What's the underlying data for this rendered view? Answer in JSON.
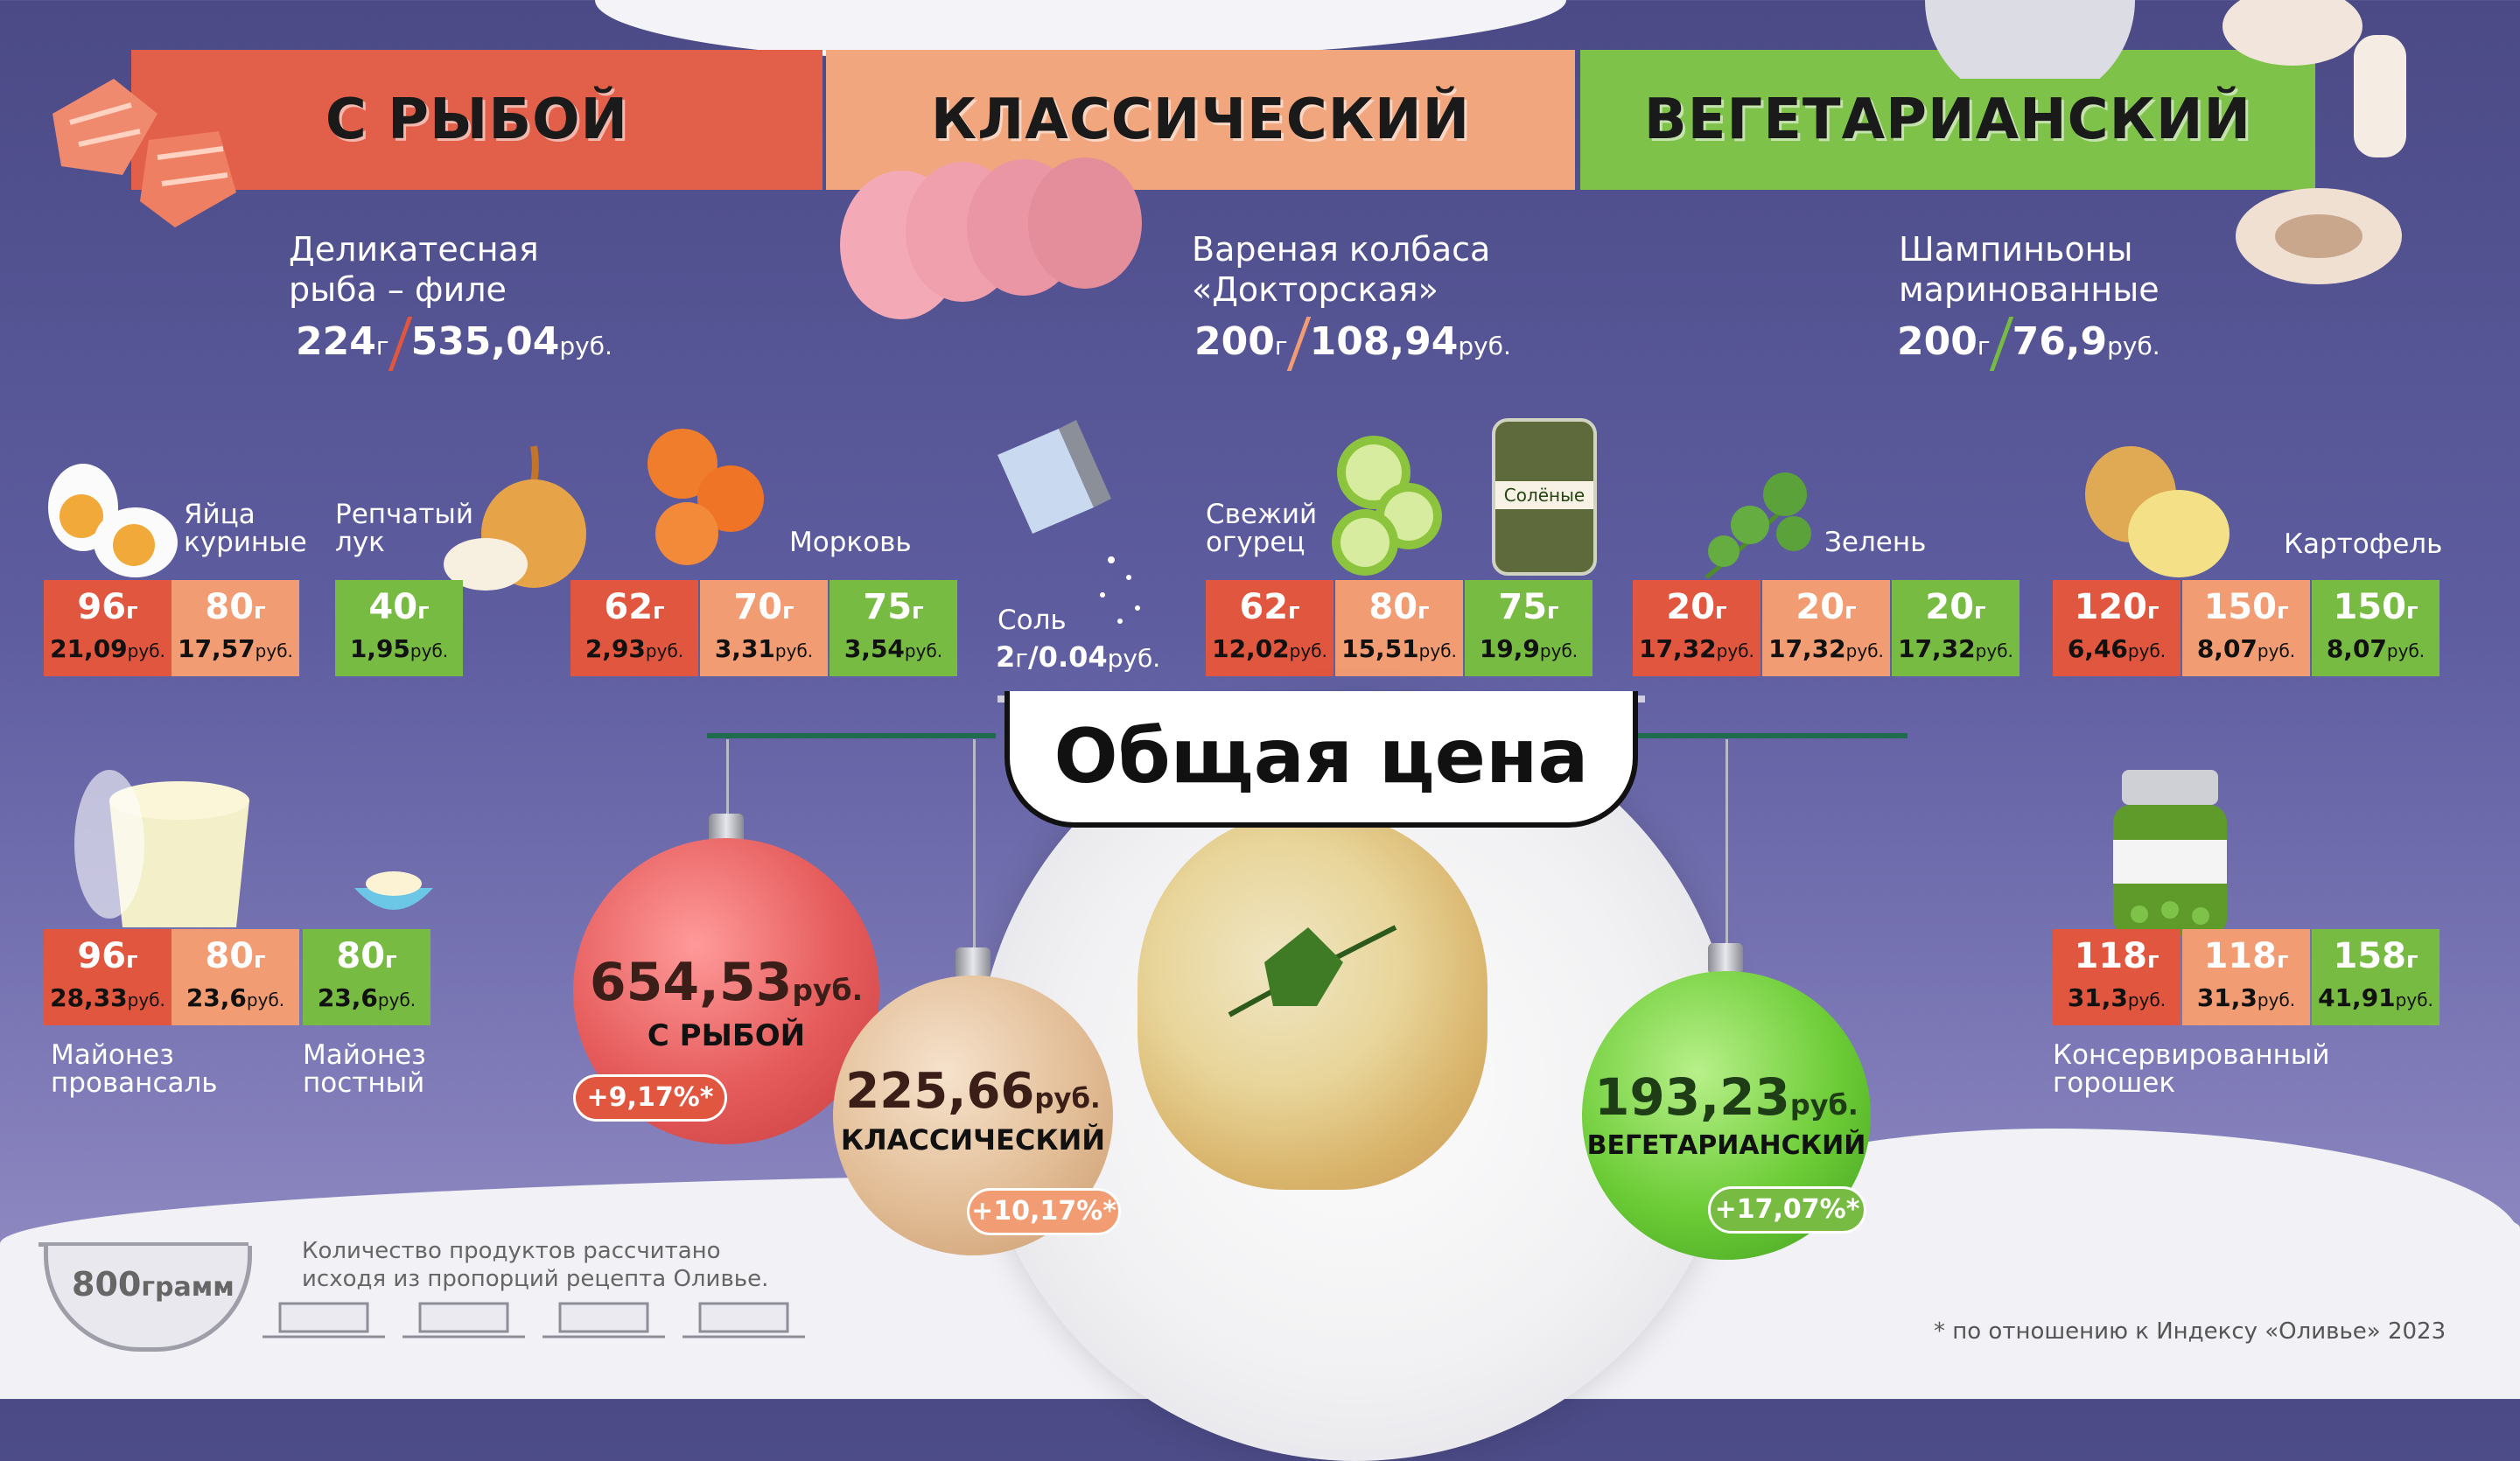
{
  "headers": {
    "fish": "С РЫБОЙ",
    "classic": "КЛАССИЧЕСКИЙ",
    "veg": "ВЕГЕТАРИАНСКИЙ"
  },
  "colors": {
    "fish": "#e0563f",
    "classic": "#f19c73",
    "veg": "#78bb43",
    "background": "#55549a"
  },
  "main_ingredients": [
    {
      "name_line1": "Деликатесная",
      "name_line2": "рыба – филе",
      "grams": "224",
      "price": "535,04",
      "slash_color": "#e0563f"
    },
    {
      "name_line1": "Вареная колбаса",
      "name_line2": "«Докторская»",
      "grams": "200",
      "price": "108,94",
      "slash_color": "#f19c73"
    },
    {
      "name_line1": "Шампиньоны",
      "name_line2": "маринованные",
      "grams": "200",
      "price": "76,9",
      "slash_color": "#78bb43"
    }
  ],
  "units": {
    "g": "г",
    "rub": "руб."
  },
  "labels": {
    "eggs": [
      "Яйца",
      "куриные"
    ],
    "onion": [
      "Репчатый",
      "лук"
    ],
    "carrot": "Морковь",
    "salt": "Соль",
    "cucumber": [
      "Свежий",
      "огурец"
    ],
    "pickled_label": "Солёные",
    "greens": "Зелень",
    "potato": "Картофель",
    "mayo_prov": [
      "Майонез",
      "провансаль"
    ],
    "mayo_lean": [
      "Майонез",
      "постный"
    ],
    "peas": [
      "Консервированный",
      "горошек"
    ]
  },
  "salt": {
    "grams": "2",
    "price": "0.04"
  },
  "cells": {
    "eggs": [
      {
        "g": "96",
        "p": "21,09"
      },
      {
        "g": "80",
        "p": "17,57"
      }
    ],
    "onion": [
      {
        "g": "40",
        "p": "1,95"
      }
    ],
    "carrot": [
      {
        "g": "62",
        "p": "2,93"
      },
      {
        "g": "70",
        "p": "3,31"
      },
      {
        "g": "75",
        "p": "3,54"
      }
    ],
    "cucumber": [
      {
        "g": "62",
        "p": "12,02"
      },
      {
        "g": "80",
        "p": "15,51"
      },
      {
        "g": "75",
        "p": "19,9"
      }
    ],
    "greens": [
      {
        "g": "20",
        "p": "17,32"
      },
      {
        "g": "20",
        "p": "17,32"
      },
      {
        "g": "20",
        "p": "17,32"
      }
    ],
    "potato": [
      {
        "g": "120",
        "p": "6,46"
      },
      {
        "g": "150",
        "p": "8,07"
      },
      {
        "g": "150",
        "p": "8,07"
      }
    ],
    "mayo": [
      {
        "g": "96",
        "p": "28,33"
      },
      {
        "g": "80",
        "p": "23,6"
      },
      {
        "g": "80",
        "p": "23,6"
      }
    ],
    "peas": [
      {
        "g": "118",
        "p": "31,3"
      },
      {
        "g": "118",
        "p": "31,3"
      },
      {
        "g": "158",
        "p": "41,91"
      }
    ]
  },
  "total": {
    "title": "Общая цена",
    "fish": {
      "price": "654,53",
      "name": "С РЫБОЙ",
      "change": "+9,17%",
      "mark": "*"
    },
    "classic": {
      "price": "225,66",
      "name": "КЛАССИЧЕСКИЙ",
      "change": "+10,17%",
      "mark": "*"
    },
    "veg": {
      "price": "193,23",
      "name": "ВЕГЕТАРИАНСКИЙ",
      "change": "+17,07%",
      "mark": "*"
    }
  },
  "footer": {
    "bowl_amount": "800",
    "bowl_unit": "грамм",
    "note_line1": "Количество продуктов рассчитано",
    "note_line2": "исходя из пропорций рецепта Оливье.",
    "footnote": "* по отношению к Индексу «Оливье» 2023"
  },
  "icons": [
    "salmon-icon",
    "sausage-icon",
    "mushroom-icon",
    "egg-icon",
    "onion-icon",
    "carrot-icon",
    "salt-shaker-icon",
    "cucumber-icon",
    "pickle-jar-icon",
    "parsley-icon",
    "potato-icon",
    "mayo-bucket-icon",
    "mayo-bowl-icon",
    "peas-jar-icon",
    "salad-plate-icon",
    "bowl-icon"
  ]
}
